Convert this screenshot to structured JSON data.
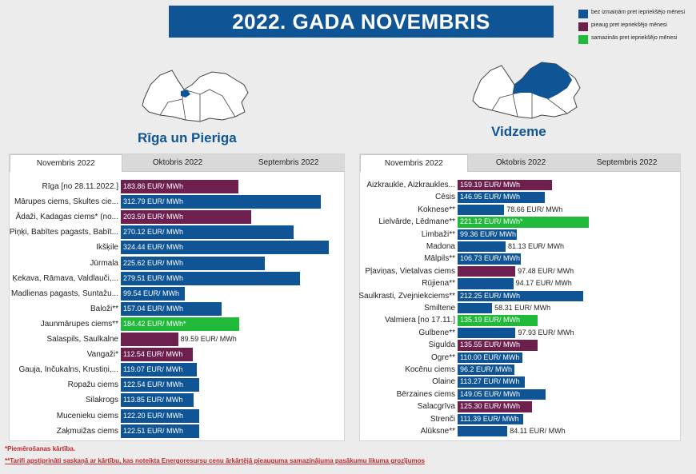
{
  "title": "2022. GADA NOVEMBRIS",
  "legend": [
    {
      "label": "bez izmaiņām pret iepriekšējo mēnesi",
      "color": "#0f5596"
    },
    {
      "label": "pieaug pret iepriekšējo mēnesi",
      "color": "#6d1f4e"
    },
    {
      "label": "samazinās pret iepriekšējo mēnesi",
      "color": "#21b93a"
    }
  ],
  "tabs": [
    "Novembris 2022",
    "Oktobris 2022",
    "Septembris 2022"
  ],
  "footnotes": [
    "*Piemērošanas kārtība.",
    "**Tarifi apstiprināti saskaņā ar kārtību, kas noteikta Energoresursu cenu ārkārtējā pieauguma samazinājuma pasākumu likuma grozījumos"
  ],
  "chart_data": [
    {
      "type": "bar",
      "title": "Rīga un Pieriga",
      "unit": "EUR/ MWh",
      "categories": [
        "Rīga [no 28.11.2022.]",
        "Mārupes ciems, Skultes cie...",
        "Ādaži, Kadagas ciems* (no...",
        "Piņķi, Babītes pagasts, Babīt...",
        "Ikšķile",
        "Jūrmala",
        "Ķekava, Rāmava, Valdlauči,...",
        "Madlienas pagasts, Suntažu...",
        "Baloži**",
        "Jaunmārupes ciems**",
        "Salaspils, Saulkalne",
        "Vangaži*",
        "Gauja, Inčukalns, Krustiņi,...",
        "Ropažu ciems",
        "Silakrogs",
        "Mucenieku ciems",
        "Zaķmuižas ciems"
      ],
      "values": [
        183.86,
        312.79,
        203.59,
        270.12,
        324.44,
        225.62,
        279.51,
        99.54,
        157.04,
        184.42,
        89.59,
        112.54,
        119.07,
        122.54,
        113.85,
        122.2,
        122.51
      ],
      "value_labels": [
        "183.86 EUR/ MWh",
        "312.79 EUR/ MWh",
        "203.59 EUR/ MWh",
        "270.12 EUR/ MWh",
        "324.44 EUR/ MWh",
        "225.62 EUR/ MWh",
        "279.51 EUR/ MWh",
        "99.54 EUR/ MWh",
        "157.04 EUR/ MWh",
        "184.42 EUR/ MWh*",
        "89.59 EUR/ MWh",
        "112.54 EUR/ MWh",
        "119.07 EUR/ MWh",
        "122.54 EUR/ MWh",
        "113.85 EUR/ MWh",
        "122.20 EUR/ MWh",
        "122.51 EUR/ MWh"
      ],
      "status": [
        "up",
        "same",
        "up",
        "same",
        "same",
        "same",
        "same",
        "same",
        "same",
        "down",
        "up",
        "up",
        "same",
        "same",
        "same",
        "same",
        "same"
      ]
    },
    {
      "type": "bar",
      "title": "Vidzeme",
      "unit": "EUR/ MWh",
      "categories": [
        "Aizkraukle, Aizkraukles...",
        "Cēsis",
        "Koknese**",
        "Lielvārde, Lēdmane**",
        "Limbaži**",
        "Madona",
        "Mālpils**",
        "Pļaviņas, Vietalvas ciems",
        "Rūjiena**",
        "Saulkrasti, Zvejniekciems**",
        "Smiltene",
        "Valmiera [no 17.11.]",
        "Gulbene**",
        "Sigulda",
        "Ogre**",
        "Kocēnu ciems",
        "Olaine",
        "Bērzaines ciems",
        "Salacgrīva",
        "Strenči",
        "Alūksne**"
      ],
      "values": [
        159.19,
        146.95,
        78.66,
        221.12,
        99.36,
        81.13,
        106.73,
        97.48,
        94.17,
        212.25,
        58.31,
        135.19,
        97.93,
        135.55,
        110.0,
        96.2,
        113.27,
        149.05,
        125.3,
        111.39,
        84.11
      ],
      "value_labels": [
        "159.19 EUR/ MWh",
        "146.95 EUR/ MWh",
        "78.66 EUR/ MWh",
        "221.12 EUR/ MWh*",
        "99.36 EUR/ MWh",
        "81.13 EUR/ MWh",
        "106.73 EUR/ MWh",
        "97.48 EUR/ MWh",
        "94.17 EUR/ MWh",
        "212.25 EUR/ MWh",
        "58.31 EUR/ MWh",
        "135.19 EUR/ MWh",
        "97.93 EUR/ MWh",
        "135.55 EUR/ MWh",
        "110.00 EUR/ MWh",
        "96.2 EUR/ MWh",
        "113.27 EUR/ MWh",
        "149.05 EUR/ MWh",
        "125.30 EUR/ MWh",
        "111.39 EUR/ MWh",
        "84.11 EUR/ MWh"
      ],
      "status": [
        "up",
        "same",
        "same",
        "down",
        "same",
        "same",
        "same",
        "up",
        "same",
        "same",
        "same",
        "down",
        "same",
        "up",
        "same",
        "same",
        "same",
        "same",
        "up",
        "same",
        "same"
      ]
    }
  ]
}
